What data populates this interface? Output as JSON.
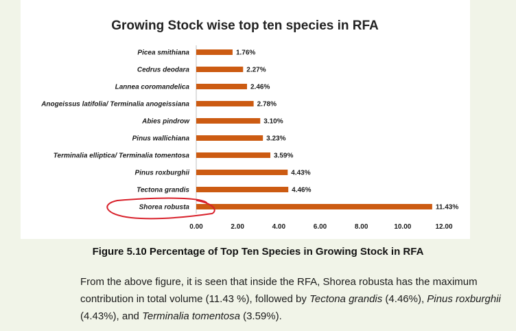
{
  "chart_data": {
    "type": "bar",
    "orientation": "horizontal",
    "title": "Growing Stock wise top ten species in RFA",
    "categories": [
      "Picea smithiana",
      "Cedrus deodara",
      "Lannea coromandelica",
      "Anogeissus latifolia/ Terminalia anogeissiana",
      "Abies pindrow",
      "Pinus wallichiana",
      "Terminalia elliptica/ Terminalia tomentosa",
      "Pinus roxburghii",
      "Tectona grandis",
      "Shorea robusta"
    ],
    "values": [
      1.76,
      2.27,
      2.46,
      2.78,
      3.1,
      3.23,
      3.59,
      4.43,
      4.46,
      11.43
    ],
    "value_labels": [
      "1.76%",
      "2.27%",
      "2.46%",
      "2.78%",
      "3.10%",
      "3.23%",
      "3.59%",
      "4.43%",
      "4.46%",
      "11.43%"
    ],
    "xticks": [
      "0.00",
      "2.00",
      "4.00",
      "6.00",
      "8.00",
      "10.00",
      "12.00"
    ],
    "xlim": [
      0,
      12
    ],
    "bar_color": "#cc5b12",
    "highlight": {
      "category": "Shorea robusta",
      "style": "hand-drawn red circle",
      "color": "#d8202a"
    },
    "grid": false
  },
  "caption": "Figure 5.10 Percentage of Top Ten Species in Growing Stock in RFA",
  "body": {
    "part1": "From the above figure, it is seen that inside the RFA, Shorea robusta has the maximum contribution in total volume (11.43 %), followed by ",
    "species1": "Tectona grandis",
    "part2": " (4.46%), ",
    "species2": "Pinus roxburghii",
    "part3": " (4.43%), and ",
    "species3": "Terminalia tomentosa",
    "part4": " (3.59%)."
  }
}
